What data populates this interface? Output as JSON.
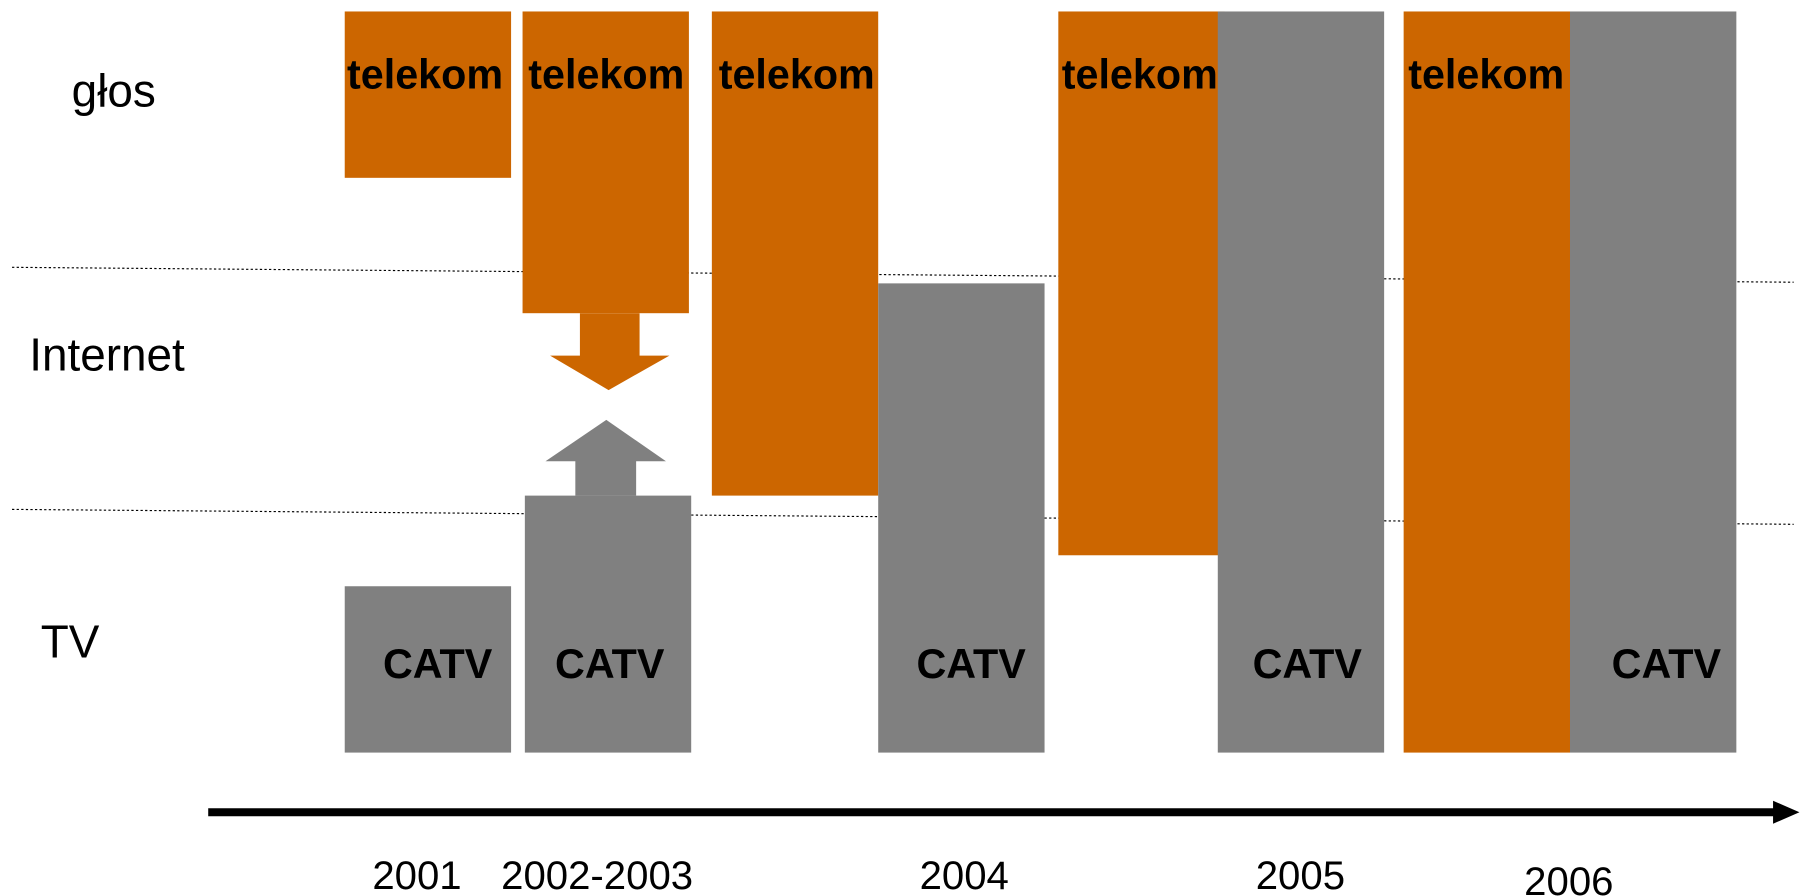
{
  "rows": [
    "głos",
    "Internet",
    "TV"
  ],
  "years": [
    "2001",
    "2002-2003",
    "2004",
    "2005",
    "2006"
  ],
  "blocks": [
    "telekom",
    "CATV",
    "telekom",
    "CATV",
    "telekom",
    "CATV",
    "telekom",
    "CATV",
    "telekom",
    "CATV"
  ]
}
